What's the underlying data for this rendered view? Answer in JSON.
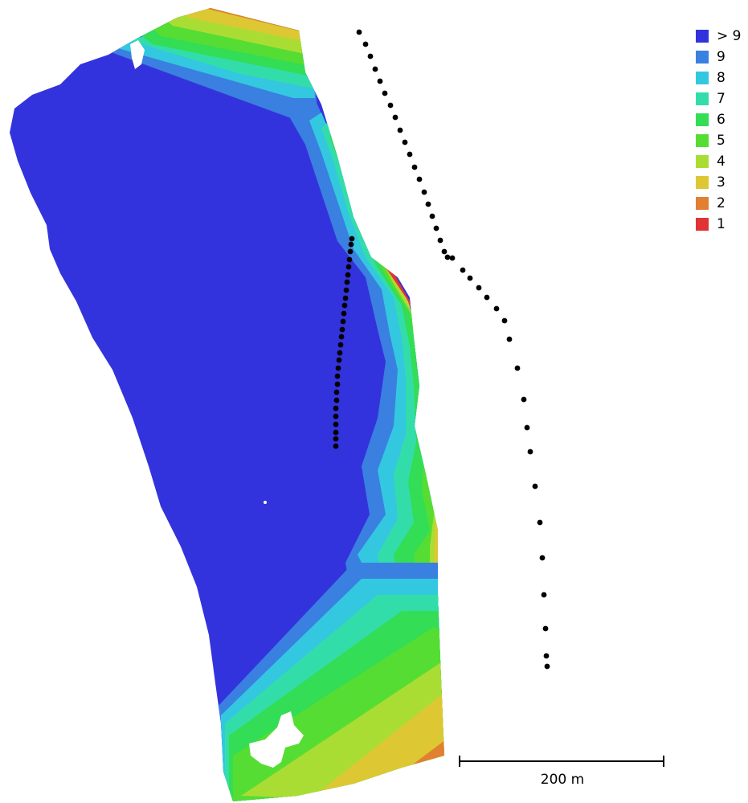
{
  "legend": {
    "items": [
      {
        "label": "> 9",
        "color": "#3333DD"
      },
      {
        "label": "9",
        "color": "#3A80E0"
      },
      {
        "label": "8",
        "color": "#33C8E0"
      },
      {
        "label": "7",
        "color": "#33DDAA"
      },
      {
        "label": "6",
        "color": "#33DD55"
      },
      {
        "label": "5",
        "color": "#55DD33"
      },
      {
        "label": "4",
        "color": "#AADD33"
      },
      {
        "label": "3",
        "color": "#DDC833"
      },
      {
        "label": "2",
        "color": "#E08030"
      },
      {
        "label": "1",
        "color": "#E03333"
      }
    ]
  },
  "scale_bar": {
    "label": "200 m"
  }
}
